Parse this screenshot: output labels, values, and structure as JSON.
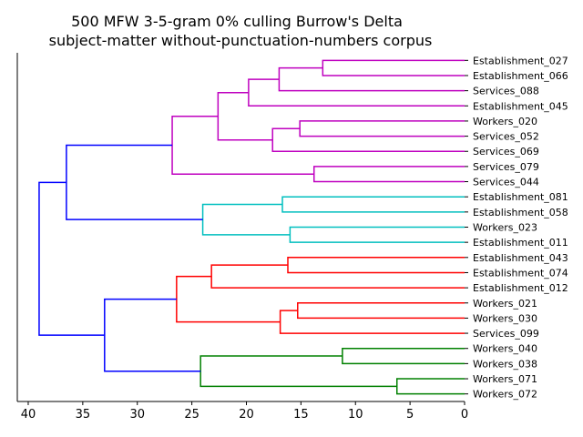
{
  "chart_data": {
    "type": "dendrogram",
    "title_lines": [
      "500 MFW 3-5-gram 0% culling Burrow's Delta",
      "subject-matter without-punctuation-numbers corpus"
    ],
    "xlim": [
      41,
      0
    ],
    "x_ticks": [
      40,
      35,
      30,
      25,
      20,
      15,
      10,
      5,
      0
    ],
    "orientation": "left",
    "grid": false,
    "leaves": [
      "Establishment_027",
      "Establishment_066",
      "Services_088",
      "Establishment_045",
      "Workers_020",
      "Services_052",
      "Services_069",
      "Services_079",
      "Services_044",
      "Establishment_081",
      "Establishment_058",
      "Workers_023",
      "Establishment_011",
      "Establishment_043",
      "Establishment_074",
      "Establishment_012",
      "Workers_021",
      "Workers_030",
      "Services_099",
      "Workers_040",
      "Workers_038",
      "Workers_071",
      "Workers_072"
    ],
    "colors": {
      "root": "#0000ff",
      "magenta": "#bf00bf",
      "cyan": "#00bfbf",
      "red": "#ff0000",
      "green": "#008000"
    },
    "merges": [
      {
        "left": "L0",
        "right": "L1",
        "height": 13.0,
        "color": "magenta"
      },
      {
        "left": "M0",
        "right": "L2",
        "height": 17.0,
        "color": "magenta"
      },
      {
        "left": "M1",
        "right": "L3",
        "height": 19.8,
        "color": "magenta"
      },
      {
        "left": "L4",
        "right": "L5",
        "height": 15.1,
        "color": "magenta"
      },
      {
        "left": "M3",
        "right": "L6",
        "height": 17.6,
        "color": "magenta"
      },
      {
        "left": "M2",
        "right": "M4",
        "height": 22.6,
        "color": "magenta"
      },
      {
        "left": "L7",
        "right": "L8",
        "height": 13.8,
        "color": "magenta"
      },
      {
        "left": "M5",
        "right": "M6",
        "height": 26.8,
        "color": "magenta"
      },
      {
        "left": "L9",
        "right": "L10",
        "height": 16.7,
        "color": "cyan"
      },
      {
        "left": "L11",
        "right": "L12",
        "height": 16.0,
        "color": "cyan"
      },
      {
        "left": "M8",
        "right": "M9",
        "height": 24.0,
        "color": "cyan"
      },
      {
        "left": "M7",
        "right": "M10",
        "height": 36.5,
        "color": "root"
      },
      {
        "left": "L13",
        "right": "L14",
        "height": 16.2,
        "color": "red"
      },
      {
        "left": "M12",
        "right": "L15",
        "height": 23.2,
        "color": "red"
      },
      {
        "left": "L16",
        "right": "L17",
        "height": 15.3,
        "color": "red"
      },
      {
        "left": "M14",
        "right": "L18",
        "height": 16.9,
        "color": "red"
      },
      {
        "left": "M13",
        "right": "M15",
        "height": 26.4,
        "color": "red"
      },
      {
        "left": "L19",
        "right": "L20",
        "height": 11.2,
        "color": "green"
      },
      {
        "left": "L21",
        "right": "L22",
        "height": 6.2,
        "color": "green"
      },
      {
        "left": "M17",
        "right": "M18",
        "height": 24.2,
        "color": "green"
      },
      {
        "left": "M16",
        "right": "M19",
        "height": 33.0,
        "color": "root"
      },
      {
        "left": "M11",
        "right": "M20",
        "height": 39.0,
        "color": "root"
      }
    ]
  }
}
